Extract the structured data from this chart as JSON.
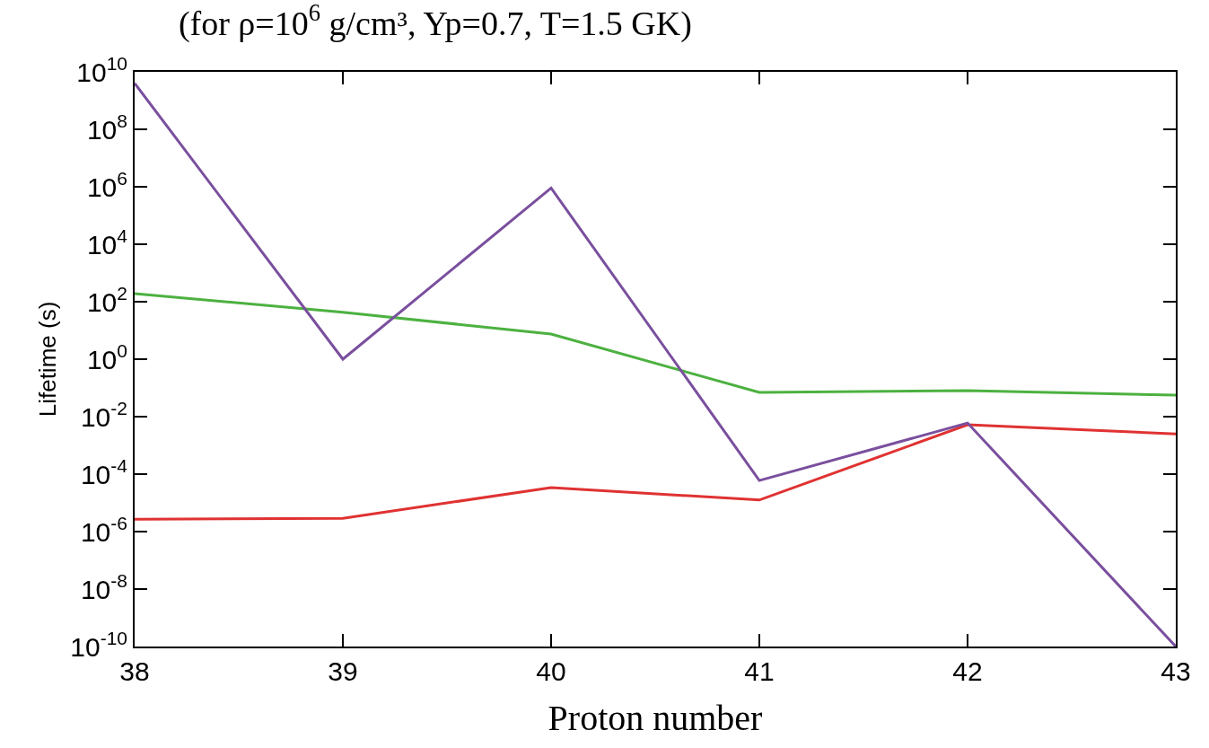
{
  "chart_data": {
    "type": "line",
    "title": "(for ρ=10$^{6}$ g/cm³, Yp=0.7, T=1.5 GK)",
    "xlabel": "Proton number",
    "ylabel": "Lifetime (s)",
    "x": [
      38,
      39,
      40,
      41,
      42,
      43
    ],
    "series": [
      {
        "color": "#4cb140",
        "values": [
          190,
          43,
          7.5,
          0.07,
          0.08,
          0.056
        ]
      },
      {
        "color": "#e03232",
        "values": [
          2.7e-06,
          2.9e-06,
          3.4e-05,
          1.26e-05,
          0.0052,
          0.0025
        ]
      },
      {
        "color": "#7a4f9e",
        "values": [
          4000000000.0,
          1,
          900000.0,
          6e-05,
          0.006,
          1e-10
        ]
      }
    ],
    "log": "y",
    "xlim": [
      38,
      43
    ],
    "ylim": [
      1e-10,
      10000000000.0
    ],
    "xticks": [
      38,
      39,
      40,
      41,
      42,
      43
    ],
    "yticks": [
      {
        "value": 1e-10,
        "label": "10$^{-10}$"
      },
      {
        "value": 1e-08,
        "label": "10$^{-8}$"
      },
      {
        "value": 1e-06,
        "label": "10$^{-6}$"
      },
      {
        "value": 0.0001,
        "label": "10$^{-4}$"
      },
      {
        "value": 0.01,
        "label": "10$^{-2}$"
      },
      {
        "value": 1,
        "label": "10$^{0}$"
      },
      {
        "value": 100,
        "label": "10$^{2}$"
      },
      {
        "value": 10000.0,
        "label": "10$^{4}$"
      },
      {
        "value": 1000000.0,
        "label": "10$^{6}$"
      },
      {
        "value": 100000000.0,
        "label": "10$^{8}$"
      },
      {
        "value": 10000000000.0,
        "label": "10$^{10}$"
      }
    ],
    "marker": "none",
    "line_style": "solid"
  }
}
